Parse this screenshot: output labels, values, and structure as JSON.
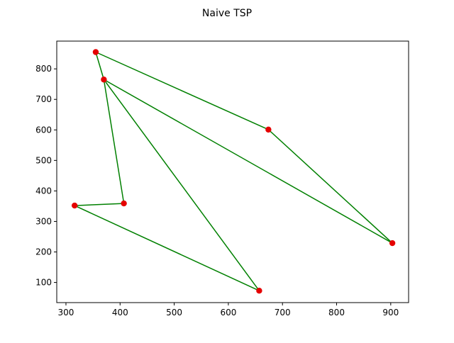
{
  "chart_data": {
    "type": "line",
    "title": "Naive TSP",
    "xlabel": "",
    "ylabel": "",
    "xlim": [
      283,
      933
    ],
    "ylim": [
      34,
      891
    ],
    "xticks": [
      300,
      400,
      500,
      600,
      700,
      800,
      900
    ],
    "yticks": [
      100,
      200,
      300,
      400,
      500,
      600,
      700,
      800
    ],
    "grid": false,
    "legend": "none",
    "points": [
      {
        "x": 355,
        "y": 855
      },
      {
        "x": 674,
        "y": 601
      },
      {
        "x": 903,
        "y": 229
      },
      {
        "x": 370,
        "y": 765
      },
      {
        "x": 657,
        "y": 73
      },
      {
        "x": 316,
        "y": 352
      },
      {
        "x": 407,
        "y": 359
      }
    ],
    "route_order": [
      0,
      1,
      2,
      3,
      4,
      5,
      6,
      3,
      0
    ],
    "line_color": "#008000",
    "marker_color": "#e50000"
  }
}
